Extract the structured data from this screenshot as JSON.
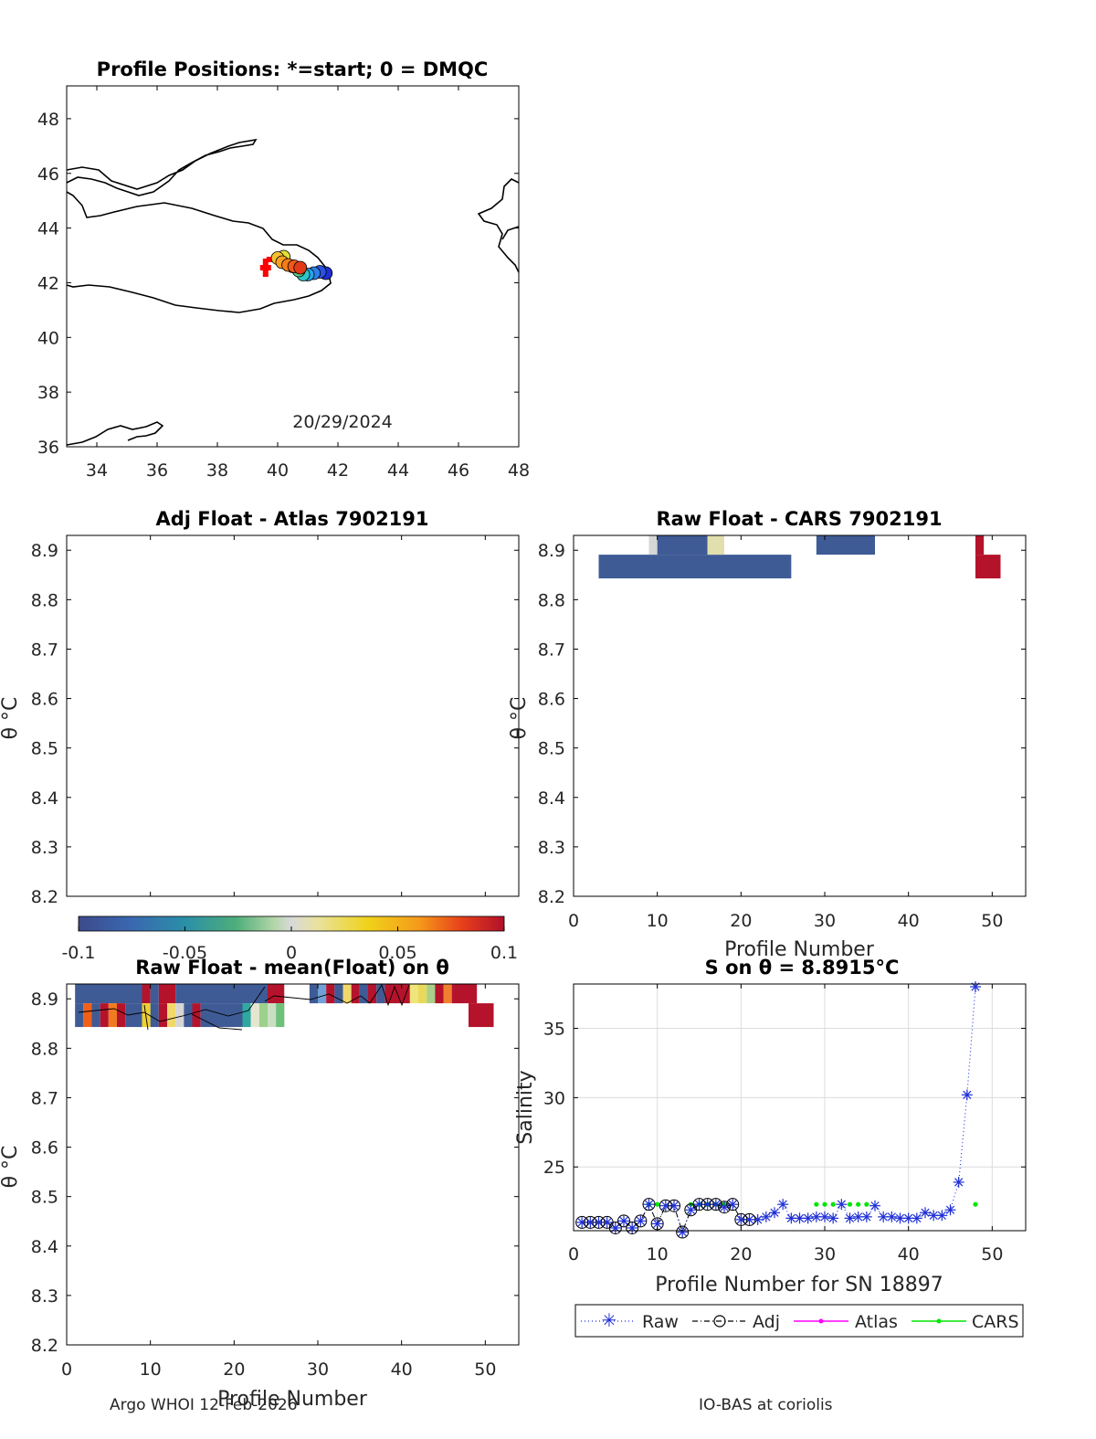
{
  "footer": {
    "left": "Argo WHOI 12-Feb-2026",
    "right": "IO-BAS at coriolis"
  },
  "chart_data": [
    {
      "id": "map",
      "type": "scatter",
      "title": "Profile Positions: *=start; 0 = DMQC",
      "annotation": "20/29/2024",
      "xlim": [
        33,
        48
      ],
      "ylim": [
        36,
        49.2
      ],
      "xticks": [
        34,
        36,
        38,
        40,
        42,
        44,
        46,
        48
      ],
      "yticks": [
        36,
        38,
        40,
        42,
        44,
        46,
        48
      ],
      "start_marker": {
        "lon": 39.6,
        "lat": 42.55,
        "color": "#ff0000"
      },
      "points": [
        {
          "lon": 41.6,
          "lat": 42.35,
          "color": "#1f2fd6"
        },
        {
          "lon": 41.4,
          "lat": 42.4,
          "color": "#2a52e0"
        },
        {
          "lon": 41.2,
          "lat": 42.35,
          "color": "#2e7fe8"
        },
        {
          "lon": 41.0,
          "lat": 42.3,
          "color": "#25a5e8"
        },
        {
          "lon": 40.85,
          "lat": 42.3,
          "color": "#2ec5c8"
        },
        {
          "lon": 40.7,
          "lat": 42.45,
          "color": "#58c98a"
        },
        {
          "lon": 40.5,
          "lat": 42.6,
          "color": "#a0d05a"
        },
        {
          "lon": 40.2,
          "lat": 42.95,
          "color": "#e2e03a"
        },
        {
          "lon": 40.0,
          "lat": 42.9,
          "color": "#f5c030"
        },
        {
          "lon": 40.15,
          "lat": 42.75,
          "color": "#f7a020"
        },
        {
          "lon": 40.35,
          "lat": 42.65,
          "color": "#f57c1a"
        },
        {
          "lon": 40.55,
          "lat": 42.6,
          "color": "#ef5a18"
        },
        {
          "lon": 40.75,
          "lat": 42.55,
          "color": "#e23a18"
        }
      ]
    },
    {
      "id": "adj_atlas",
      "type": "heatmap",
      "title": "Adj Float - Atlas  7902191",
      "ylabel": "θ °C",
      "ylim": [
        8.2,
        8.93
      ],
      "yticks": [
        8.2,
        8.3,
        8.4,
        8.5,
        8.6,
        8.7,
        8.8,
        8.9
      ],
      "cells": [],
      "colorbar": {
        "min": -0.1,
        "max": 0.1,
        "ticks": [
          "-0.1",
          "-0.05",
          "0",
          "0.05",
          "0.1"
        ]
      }
    },
    {
      "id": "raw_cars",
      "type": "heatmap",
      "title": "Raw Float - CARS  7902191",
      "xlabel": "Profile Number",
      "ylabel": "θ °C",
      "xlim": [
        0,
        54
      ],
      "xticks": [
        0,
        10,
        20,
        30,
        40,
        50
      ],
      "ylim": [
        8.2,
        8.93
      ],
      "yticks": [
        8.2,
        8.3,
        8.4,
        8.5,
        8.6,
        8.7,
        8.8,
        8.9
      ],
      "cells": [
        {
          "x0": 3,
          "x1": 26,
          "y0": 8.843,
          "y1": 8.891,
          "color": "#3f5b96"
        },
        {
          "x0": 9,
          "x1": 10,
          "y0": 8.891,
          "y1": 8.94,
          "color": "#d6d6d6"
        },
        {
          "x0": 10,
          "x1": 16,
          "y0": 8.891,
          "y1": 8.94,
          "color": "#3f5b96"
        },
        {
          "x0": 16,
          "x1": 18,
          "y0": 8.891,
          "y1": 8.94,
          "color": "#e1dfae"
        },
        {
          "x0": 29,
          "x1": 36,
          "y0": 8.891,
          "y1": 8.94,
          "color": "#3f5b96"
        },
        {
          "x0": 48,
          "x1": 49,
          "y0": 8.891,
          "y1": 8.94,
          "color": "#b5132b"
        },
        {
          "x0": 48,
          "x1": 51,
          "y0": 8.843,
          "y1": 8.891,
          "color": "#b5132b"
        }
      ]
    },
    {
      "id": "raw_mean",
      "type": "heatmap",
      "title": "Raw Float - mean(Float) on θ",
      "xlabel": "Profile Number",
      "ylabel": "θ °C",
      "xlim": [
        0,
        54
      ],
      "xticks": [
        0,
        10,
        20,
        30,
        40,
        50
      ],
      "ylim": [
        8.2,
        8.93
      ],
      "yticks": [
        8.2,
        8.3,
        8.4,
        8.5,
        8.6,
        8.7,
        8.8,
        8.9
      ],
      "cells": [
        {
          "x0": 1,
          "x1": 9,
          "y0": 8.891,
          "y1": 8.94,
          "color": "#3f5b96"
        },
        {
          "x0": 9,
          "x1": 10,
          "y0": 8.891,
          "y1": 8.94,
          "color": "#b5132b"
        },
        {
          "x0": 10,
          "x1": 11,
          "y0": 8.891,
          "y1": 8.94,
          "color": "#3f5b96"
        },
        {
          "x0": 11,
          "x1": 13,
          "y0": 8.891,
          "y1": 8.94,
          "color": "#b5132b"
        },
        {
          "x0": 13,
          "x1": 24,
          "y0": 8.891,
          "y1": 8.94,
          "color": "#3f5b96"
        },
        {
          "x0": 24,
          "x1": 26,
          "y0": 8.891,
          "y1": 8.94,
          "color": "#b5132b"
        },
        {
          "x0": 26,
          "x1": 29,
          "y0": 8.891,
          "y1": 8.94,
          "color": "#ffffff"
        },
        {
          "x0": 29,
          "x1": 30,
          "y0": 8.891,
          "y1": 8.94,
          "color": "#3f5b96"
        },
        {
          "x0": 30,
          "x1": 31,
          "y0": 8.891,
          "y1": 8.94,
          "color": "#6fa0d8"
        },
        {
          "x0": 31,
          "x1": 32,
          "y0": 8.891,
          "y1": 8.94,
          "color": "#b5132b"
        },
        {
          "x0": 32,
          "x1": 33,
          "y0": 8.891,
          "y1": 8.94,
          "color": "#3f5b96"
        },
        {
          "x0": 33,
          "x1": 34,
          "y0": 8.891,
          "y1": 8.94,
          "color": "#f0d86a"
        },
        {
          "x0": 34,
          "x1": 35,
          "y0": 8.891,
          "y1": 8.94,
          "color": "#b5132b"
        },
        {
          "x0": 35,
          "x1": 36,
          "y0": 8.891,
          "y1": 8.94,
          "color": "#3f5b96"
        },
        {
          "x0": 36,
          "x1": 37,
          "y0": 8.891,
          "y1": 8.94,
          "color": "#b5132b"
        },
        {
          "x0": 37,
          "x1": 38,
          "y0": 8.891,
          "y1": 8.94,
          "color": "#3f5b96"
        },
        {
          "x0": 38,
          "x1": 41,
          "y0": 8.891,
          "y1": 8.94,
          "color": "#b5132b"
        },
        {
          "x0": 41,
          "x1": 42,
          "y0": 8.891,
          "y1": 8.94,
          "color": "#f0e57a"
        },
        {
          "x0": 42,
          "x1": 43,
          "y0": 8.891,
          "y1": 8.94,
          "color": "#e8d95a"
        },
        {
          "x0": 43,
          "x1": 44,
          "y0": 8.891,
          "y1": 8.94,
          "color": "#a8d08a"
        },
        {
          "x0": 44,
          "x1": 45,
          "y0": 8.891,
          "y1": 8.94,
          "color": "#b5132b"
        },
        {
          "x0": 45,
          "x1": 46,
          "y0": 8.891,
          "y1": 8.94,
          "color": "#f08030"
        },
        {
          "x0": 46,
          "x1": 49,
          "y0": 8.891,
          "y1": 8.94,
          "color": "#b5132b"
        },
        {
          "x0": 1,
          "x1": 2,
          "y0": 8.843,
          "y1": 8.891,
          "color": "#3f5b96"
        },
        {
          "x0": 2,
          "x1": 3,
          "y0": 8.843,
          "y1": 8.891,
          "color": "#f0601a"
        },
        {
          "x0": 3,
          "x1": 4,
          "y0": 8.843,
          "y1": 8.891,
          "color": "#3f5b96"
        },
        {
          "x0": 4,
          "x1": 5,
          "y0": 8.843,
          "y1": 8.891,
          "color": "#b5132b"
        },
        {
          "x0": 5,
          "x1": 6,
          "y0": 8.843,
          "y1": 8.891,
          "color": "#f07a20"
        },
        {
          "x0": 6,
          "x1": 7,
          "y0": 8.843,
          "y1": 8.891,
          "color": "#b5132b"
        },
        {
          "x0": 7,
          "x1": 9,
          "y0": 8.843,
          "y1": 8.891,
          "color": "#3f5b96"
        },
        {
          "x0": 9,
          "x1": 10,
          "y0": 8.843,
          "y1": 8.891,
          "color": "#f0d030"
        },
        {
          "x0": 10,
          "x1": 11,
          "y0": 8.843,
          "y1": 8.891,
          "color": "#3f5b96"
        },
        {
          "x0": 11,
          "x1": 12,
          "y0": 8.843,
          "y1": 8.891,
          "color": "#b5132b"
        },
        {
          "x0": 12,
          "x1": 13,
          "y0": 8.843,
          "y1": 8.891,
          "color": "#f0d86a"
        },
        {
          "x0": 13,
          "x1": 14,
          "y0": 8.843,
          "y1": 8.891,
          "color": "#d6d6d6"
        },
        {
          "x0": 14,
          "x1": 15,
          "y0": 8.843,
          "y1": 8.891,
          "color": "#3f5b96"
        },
        {
          "x0": 15,
          "x1": 16,
          "y0": 8.843,
          "y1": 8.891,
          "color": "#b5132b"
        },
        {
          "x0": 16,
          "x1": 21,
          "y0": 8.843,
          "y1": 8.891,
          "color": "#3f5b96"
        },
        {
          "x0": 21,
          "x1": 22,
          "y0": 8.843,
          "y1": 8.891,
          "color": "#2fa8a0"
        },
        {
          "x0": 22,
          "x1": 23,
          "y0": 8.843,
          "y1": 8.891,
          "color": "#e6e6d0"
        },
        {
          "x0": 23,
          "x1": 24,
          "y0": 8.843,
          "y1": 8.891,
          "color": "#9cd08c"
        },
        {
          "x0": 24,
          "x1": 25,
          "y0": 8.843,
          "y1": 8.891,
          "color": "#c9dfc0"
        },
        {
          "x0": 25,
          "x1": 26,
          "y0": 8.843,
          "y1": 8.891,
          "color": "#6ec07a"
        },
        {
          "x0": 48,
          "x1": 51,
          "y0": 8.843,
          "y1": 8.891,
          "color": "#b5132b"
        }
      ]
    },
    {
      "id": "salinity",
      "type": "line",
      "title": "S on θ = 8.8915°C",
      "xlabel": "Profile Number for SN 18897",
      "ylabel": "Salinity",
      "xlim": [
        0,
        54
      ],
      "ylim": [
        20.4,
        38.2
      ],
      "xticks": [
        0,
        10,
        20,
        30,
        40,
        50
      ],
      "yticks": [
        25,
        30,
        35
      ],
      "legend": [
        "Raw",
        "Adj",
        "Atlas",
        "CARS"
      ],
      "series": [
        {
          "name": "Raw",
          "x": [
            1,
            2,
            3,
            4,
            5,
            6,
            7,
            8,
            9,
            10,
            11,
            12,
            13,
            14,
            15,
            16,
            17,
            18,
            19,
            20,
            21,
            22,
            23,
            24,
            25,
            26,
            27,
            28,
            29,
            30,
            31,
            32,
            33,
            34,
            35,
            36,
            37,
            38,
            39,
            40,
            41,
            42,
            43,
            44,
            45,
            46,
            47,
            48
          ],
          "y": [
            21.0,
            21.0,
            21.0,
            21.0,
            20.6,
            21.1,
            20.6,
            21.1,
            22.3,
            20.9,
            22.2,
            22.2,
            20.3,
            21.9,
            22.3,
            22.3,
            22.3,
            22.1,
            22.3,
            21.2,
            21.2,
            21.2,
            21.4,
            21.7,
            22.3,
            21.3,
            21.3,
            21.3,
            21.4,
            21.4,
            21.3,
            22.3,
            21.3,
            21.4,
            21.4,
            22.2,
            21.4,
            21.4,
            21.3,
            21.3,
            21.3,
            21.7,
            21.5,
            21.5,
            21.9,
            23.9,
            30.2,
            38.0
          ]
        },
        {
          "name": "Adj",
          "x": [
            1,
            2,
            3,
            4,
            5,
            6,
            7,
            8,
            9,
            10,
            11,
            12,
            13,
            14,
            15,
            16,
            17,
            18,
            19,
            20,
            21
          ],
          "y": [
            21.0,
            21.0,
            21.0,
            21.0,
            20.6,
            21.1,
            20.6,
            21.1,
            22.3,
            20.9,
            22.2,
            22.2,
            20.3,
            21.9,
            22.3,
            22.3,
            22.3,
            22.1,
            22.3,
            21.2,
            21.2
          ]
        },
        {
          "name": "CARS",
          "x": [
            9,
            10,
            14,
            15,
            16,
            17,
            18,
            29,
            30,
            31,
            33,
            34,
            35,
            48
          ],
          "y": [
            22.3,
            22.3,
            22.3,
            22.3,
            22.3,
            22.3,
            22.3,
            22.3,
            22.3,
            22.3,
            22.3,
            22.3,
            22.3,
            22.3
          ]
        }
      ]
    }
  ]
}
